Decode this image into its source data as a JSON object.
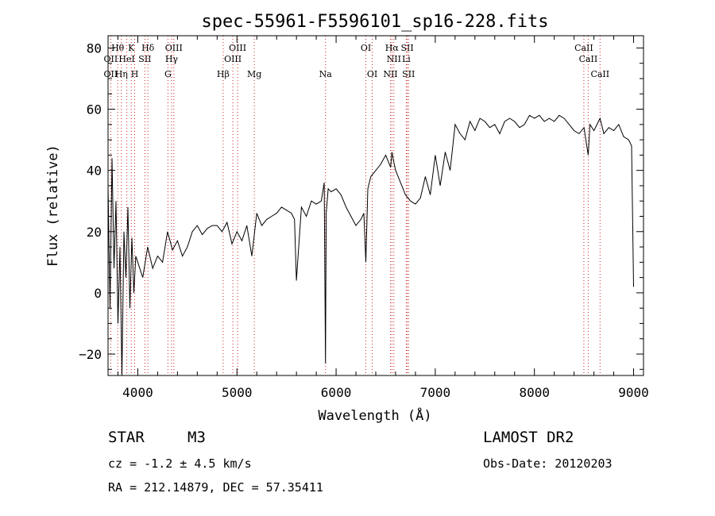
{
  "chart_data": {
    "type": "line",
    "title": "spec-55961-F5596101_sp16-228.fits",
    "xlabel": "Wavelength (Å)",
    "ylabel": "Flux (relative)",
    "xlim": [
      3700,
      9100
    ],
    "ylim": [
      -27,
      84
    ],
    "xticks": [
      4000,
      5000,
      6000,
      7000,
      8000,
      9000
    ],
    "yticks": [
      -20,
      0,
      20,
      40,
      60,
      80
    ],
    "grid": false,
    "series": [
      {
        "values_note": "",
        "x": [
          3700,
          3720,
          3740,
          3760,
          3780,
          3800,
          3820,
          3840,
          3860,
          3880,
          3900,
          3920,
          3940,
          3960,
          3980,
          4000,
          4050,
          4100,
          4150,
          4200,
          4250,
          4300,
          4350,
          4400,
          4450,
          4500,
          4550,
          4600,
          4650,
          4700,
          4750,
          4800,
          4850,
          4900,
          4950,
          5000,
          5050,
          5100,
          5150,
          5200,
          5250,
          5300,
          5350,
          5400,
          5450,
          5500,
          5550,
          5580,
          5600,
          5650,
          5700,
          5750,
          5800,
          5850,
          5880,
          5893,
          5900,
          5920,
          5950,
          6000,
          6050,
          6100,
          6150,
          6200,
          6250,
          6280,
          6300,
          6320,
          6350,
          6400,
          6450,
          6500,
          6550,
          6563,
          6580,
          6600,
          6650,
          6700,
          6750,
          6800,
          6850,
          6900,
          6950,
          7000,
          7050,
          7100,
          7150,
          7200,
          7250,
          7300,
          7350,
          7400,
          7450,
          7500,
          7550,
          7600,
          7650,
          7700,
          7750,
          7800,
          7850,
          7900,
          7950,
          8000,
          8050,
          8100,
          8150,
          8200,
          8250,
          8300,
          8350,
          8400,
          8450,
          8500,
          8542,
          8560,
          8600,
          8662,
          8700,
          8750,
          8800,
          8850,
          8900,
          8950,
          8980,
          9000
        ],
        "y": [
          35,
          -5,
          44,
          8,
          30,
          -10,
          15,
          -27,
          20,
          5,
          28,
          -5,
          18,
          0,
          12,
          10,
          5,
          15,
          8,
          12,
          10,
          20,
          14,
          17,
          12,
          15,
          20,
          22,
          19,
          21,
          22,
          22,
          20,
          23,
          16,
          20,
          17,
          22,
          12,
          26,
          22,
          24,
          25,
          26,
          28,
          27,
          26,
          24,
          4,
          28,
          25,
          30,
          29,
          30,
          36,
          -23,
          26,
          34,
          33,
          34,
          32,
          28,
          25,
          22,
          24,
          26,
          10,
          34,
          38,
          40,
          42,
          45,
          41,
          46,
          43,
          40,
          36,
          32,
          30,
          29,
          31,
          38,
          32,
          45,
          35,
          46,
          40,
          55,
          52,
          50,
          56,
          53,
          57,
          56,
          54,
          55,
          52,
          56,
          57,
          56,
          54,
          55,
          58,
          57,
          58,
          56,
          57,
          56,
          58,
          57,
          55,
          53,
          52,
          54,
          45,
          55,
          53,
          57,
          52,
          54,
          53,
          55,
          51,
          50,
          48,
          2
        ]
      }
    ],
    "annotations": {
      "row1": [
        {
          "x": 3798,
          "text": "Hθ"
        },
        {
          "x": 3934,
          "text": "K"
        },
        {
          "x": 4102,
          "text": "Hδ"
        },
        {
          "x": 4363,
          "text": "OIII"
        },
        {
          "x": 5007,
          "text": "OIII"
        },
        {
          "x": 6300,
          "text": "OI"
        },
        {
          "x": 6563,
          "text": "Hα"
        },
        {
          "x": 6717,
          "text": "SII"
        },
        {
          "x": 8498,
          "text": "CaII"
        }
      ],
      "row2": [
        {
          "x": 3727,
          "text": "OII"
        },
        {
          "x": 3889,
          "text": "HeI"
        },
        {
          "x": 4072,
          "text": "SII"
        },
        {
          "x": 4340,
          "text": "Hγ"
        },
        {
          "x": 4959,
          "text": "OIII"
        },
        {
          "x": 6583,
          "text": "NII"
        },
        {
          "x": 6708,
          "text": "Li"
        },
        {
          "x": 8542,
          "text": "CaII"
        }
      ],
      "row3": [
        {
          "x": 3727,
          "text": "OII"
        },
        {
          "x": 3835,
          "text": "Hη"
        },
        {
          "x": 3968,
          "text": "H"
        },
        {
          "x": 4304,
          "text": "G"
        },
        {
          "x": 4861,
          "text": "Hβ"
        },
        {
          "x": 5175,
          "text": "Mg"
        },
        {
          "x": 5893,
          "text": "Na"
        },
        {
          "x": 6364,
          "text": "OI"
        },
        {
          "x": 6548,
          "text": "NII"
        },
        {
          "x": 6731,
          "text": "SII"
        },
        {
          "x": 8662,
          "text": "CaII"
        }
      ],
      "line_x": [
        3727,
        3798,
        3835,
        3889,
        3934,
        3968,
        4072,
        4102,
        4304,
        4340,
        4363,
        4861,
        4959,
        5007,
        5175,
        5893,
        6300,
        6364,
        6548,
        6563,
        6583,
        6708,
        6717,
        6731,
        8498,
        8542,
        8662
      ]
    }
  },
  "info": {
    "object_class": "STAR",
    "subclass": "M3",
    "survey": "LAMOST DR2",
    "cz": "cz = -1.2 ± 4.5 km/s",
    "obs_date": "Obs-Date: 20120203",
    "coords": "RA = 212.14879, DEC =  57.35411"
  }
}
